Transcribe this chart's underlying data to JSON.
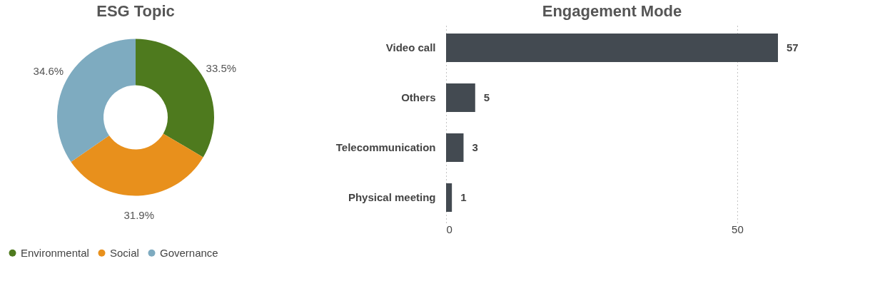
{
  "chart_data": [
    {
      "type": "donut",
      "title": "ESG Topic",
      "categories": [
        "Environmental",
        "Social",
        "Governance"
      ],
      "values": [
        33.5,
        31.9,
        34.6
      ],
      "colors": [
        "#4e7a1e",
        "#e8901c",
        "#7eabc0"
      ],
      "value_labels": [
        "33.5%",
        "31.9%",
        "34.6%"
      ],
      "legend": "bottom"
    },
    {
      "type": "bar",
      "title": "Engagement Mode",
      "orientation": "horizontal",
      "categories": [
        "Video call",
        "Others",
        "Telecommunication",
        "Physical meeting"
      ],
      "values": [
        57,
        5,
        3,
        1
      ],
      "color": "#434a51",
      "xlim": [
        0,
        57
      ],
      "xticks": [
        0,
        50
      ],
      "grid": "x",
      "data_labels": true
    }
  ]
}
